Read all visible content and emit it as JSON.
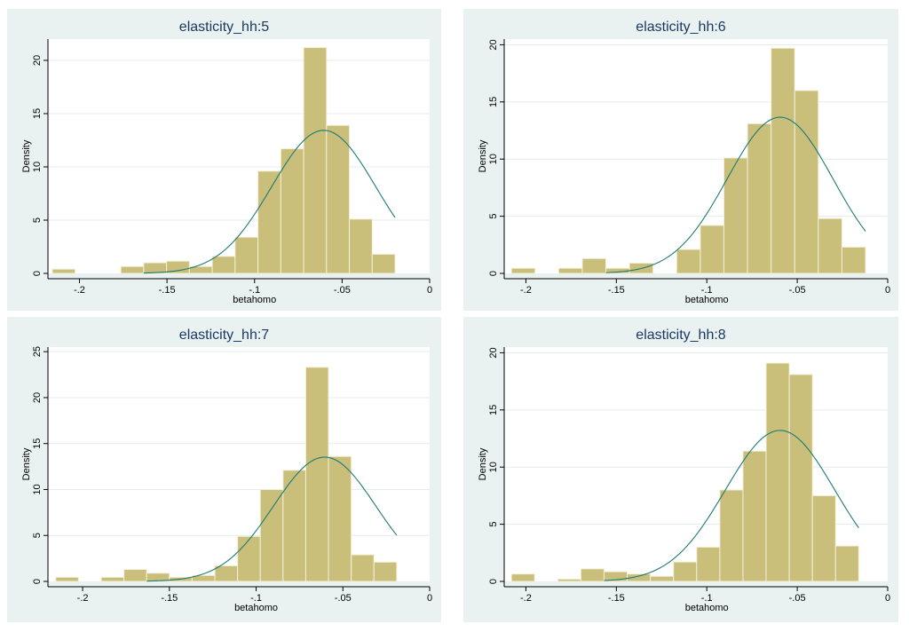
{
  "colors": {
    "panel_bg": "#e9f1f1",
    "plot_bg": "#ffffff",
    "bar_fill": "#c9bf7b",
    "bar_edge": "#f4f0d8",
    "curve": "#1c7a76",
    "grid": "#e6ecec",
    "title": "#1b3a63"
  },
  "chart_data": [
    {
      "type": "bar",
      "title": "elasticity_hh:5",
      "xlabel": "betahomo",
      "ylabel": "Density",
      "xlim": [
        -0.218,
        0.0
      ],
      "ylim": [
        0,
        22
      ],
      "xticks": [
        -0.2,
        -0.15,
        -0.1,
        -0.05,
        0
      ],
      "xtick_labels": [
        "-.2",
        "-.15",
        "-.1",
        "-.05",
        "0"
      ],
      "yticks": [
        0,
        5,
        10,
        15,
        20
      ],
      "ytick_labels": [
        "0",
        "5",
        "10",
        "15",
        "20"
      ],
      "bin_start": -0.2155,
      "bin_width": 0.01305,
      "values": [
        0.4,
        0,
        0,
        0.65,
        1.0,
        1.15,
        0.65,
        1.6,
        3.4,
        9.6,
        11.7,
        21.2,
        13.9,
        5.1,
        1.8
      ],
      "normal_curve": {
        "mean": -0.0605,
        "sd": 0.0297
      }
    },
    {
      "type": "bar",
      "title": "elasticity_hh:6",
      "xlabel": "betahomo",
      "ylabel": "Density",
      "xlim": [
        -0.212,
        0.0
      ],
      "ylim": [
        0,
        20.5
      ],
      "xticks": [
        -0.2,
        -0.15,
        -0.1,
        -0.05,
        0
      ],
      "xtick_labels": [
        "-.2",
        "-.15",
        "-.1",
        "-.05",
        "0"
      ],
      "yticks": [
        0,
        5,
        10,
        15,
        20
      ],
      "ytick_labels": [
        "0",
        "5",
        "10",
        "15",
        "20"
      ],
      "bin_start": -0.208,
      "bin_width": 0.01305,
      "values": [
        0.45,
        0,
        0.45,
        1.3,
        0.45,
        0.9,
        0,
        2.1,
        4.2,
        10.1,
        13.1,
        19.7,
        16.0,
        4.8,
        2.3
      ],
      "normal_curve": {
        "mean": -0.0595,
        "sd": 0.0292
      }
    },
    {
      "type": "bar",
      "title": "elasticity_hh:7",
      "xlabel": "betahomo",
      "ylabel": "Density",
      "xlim": [
        -0.22,
        0.0
      ],
      "ylim": [
        0,
        25.5
      ],
      "xticks": [
        -0.2,
        -0.15,
        -0.1,
        -0.05,
        0
      ],
      "xtick_labels": [
        "-.2",
        "-.15",
        "-.1",
        "-.05",
        "0"
      ],
      "yticks": [
        0,
        5,
        10,
        15,
        20,
        25
      ],
      "ytick_labels": [
        "0",
        "5",
        "10",
        "15",
        "20",
        "25"
      ],
      "bin_start": -0.2155,
      "bin_width": 0.0131,
      "values": [
        0.45,
        0,
        0.45,
        1.3,
        0.9,
        0.45,
        0.65,
        1.7,
        4.9,
        10.0,
        12.1,
        23.3,
        13.6,
        2.9,
        2.1
      ],
      "normal_curve": {
        "mean": -0.0605,
        "sd": 0.0295
      }
    },
    {
      "type": "bar",
      "title": "elasticity_hh:8",
      "xlabel": "betahomo",
      "ylabel": "Density",
      "xlim": [
        -0.212,
        0.0
      ],
      "ylim": [
        0,
        20.5
      ],
      "xticks": [
        -0.2,
        -0.15,
        -0.1,
        -0.05,
        0
      ],
      "xtick_labels": [
        "-.2",
        "-.15",
        "-.1",
        "-.05",
        "0"
      ],
      "yticks": [
        0,
        5,
        10,
        15,
        20
      ],
      "ytick_labels": [
        "0",
        "5",
        "10",
        "15",
        "20"
      ],
      "bin_start": -0.208,
      "bin_width": 0.0128,
      "values": [
        0.65,
        0,
        0.2,
        1.1,
        0.85,
        0.65,
        0.45,
        1.7,
        3.0,
        8.0,
        11.4,
        19.1,
        18.1,
        7.5,
        3.1
      ],
      "normal_curve": {
        "mean": -0.0595,
        "sd": 0.0302
      }
    }
  ]
}
